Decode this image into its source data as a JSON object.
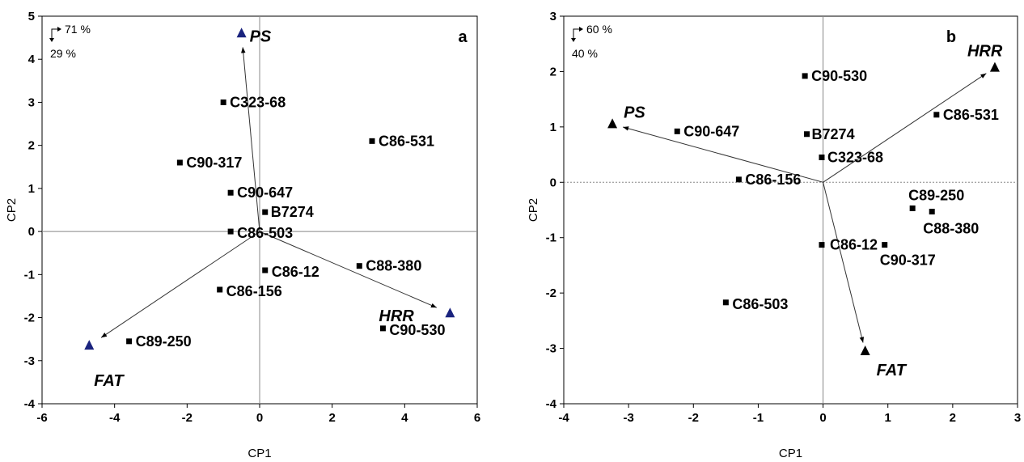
{
  "chart_data": [
    {
      "type": "scatter",
      "panel_label": "a",
      "xlabel": "CP1",
      "ylabel": "CP2",
      "xlim": [
        -6,
        6
      ],
      "ylim": [
        -4,
        5
      ],
      "xticks": [
        -6,
        -4,
        -2,
        0,
        2,
        4,
        6
      ],
      "yticks": [
        -4,
        -3,
        -2,
        -1,
        0,
        1,
        2,
        3,
        4,
        5
      ],
      "variance": {
        "cp1": "71 %",
        "cp2": "29 %"
      },
      "zero_lines": "solid",
      "marker_color": "#000000",
      "vector_color": "#1a237e",
      "points": [
        {
          "label": "C323-68",
          "x": -1.0,
          "y": 3.0
        },
        {
          "label": "C86-531",
          "x": 3.1,
          "y": 2.1
        },
        {
          "label": "C90-317",
          "x": -2.2,
          "y": 1.6
        },
        {
          "label": "C90-647",
          "x": -0.8,
          "y": 0.9
        },
        {
          "label": "B7274",
          "x": 0.15,
          "y": 0.45
        },
        {
          "label": "C86-503",
          "x": -0.8,
          "y": 0.0
        },
        {
          "label": "C86-12",
          "x": 0.15,
          "y": -0.9
        },
        {
          "label": "C88-380",
          "x": 2.75,
          "y": -0.8
        },
        {
          "label": "C86-156",
          "x": -1.1,
          "y": -1.35
        },
        {
          "label": "C90-530",
          "x": 3.4,
          "y": -2.25
        },
        {
          "label": "C89-250",
          "x": -3.6,
          "y": -2.55
        }
      ],
      "vectors": [
        {
          "label": "PS",
          "x": -0.5,
          "y": 4.6
        },
        {
          "label": "HRR",
          "x": 5.25,
          "y": -1.9
        },
        {
          "label": "FAT",
          "x": -4.7,
          "y": -2.65
        }
      ]
    },
    {
      "type": "scatter",
      "panel_label": "b",
      "xlabel": "CP1",
      "ylabel": "CP2",
      "xlim": [
        -4,
        3
      ],
      "ylim": [
        -4,
        3
      ],
      "xticks": [
        -4,
        -3,
        -2,
        -1,
        0,
        1,
        2,
        3
      ],
      "yticks": [
        -4,
        -3,
        -2,
        -1,
        0,
        1,
        2,
        3
      ],
      "variance": {
        "cp1": "60 %",
        "cp2": "40 %"
      },
      "zero_lines": "vertical solid, horizontal dotted",
      "marker_color": "#000000",
      "vector_color": "#000000",
      "points": [
        {
          "label": "C90-530",
          "x": -0.28,
          "y": 1.92
        },
        {
          "label": "C86-531",
          "x": 1.75,
          "y": 1.22
        },
        {
          "label": "C90-647",
          "x": -2.25,
          "y": 0.92
        },
        {
          "label": "B7274",
          "x": -0.25,
          "y": 0.87
        },
        {
          "label": "C323-68",
          "x": -0.02,
          "y": 0.45
        },
        {
          "label": "C86-156",
          "x": -1.3,
          "y": 0.05
        },
        {
          "label": "C89-250",
          "x": 1.38,
          "y": -0.47
        },
        {
          "label": "C88-380",
          "x": 1.68,
          "y": -0.53
        },
        {
          "label": "C86-12",
          "x": -0.02,
          "y": -1.13
        },
        {
          "label": "C90-317",
          "x": 0.95,
          "y": -1.13
        },
        {
          "label": "C86-503",
          "x": -1.5,
          "y": -2.17
        }
      ],
      "vectors": [
        {
          "label": "PS",
          "x": -3.25,
          "y": 1.05
        },
        {
          "label": "HRR",
          "x": 2.65,
          "y": 2.07
        },
        {
          "label": "FAT",
          "x": 0.65,
          "y": -3.05
        }
      ]
    }
  ]
}
